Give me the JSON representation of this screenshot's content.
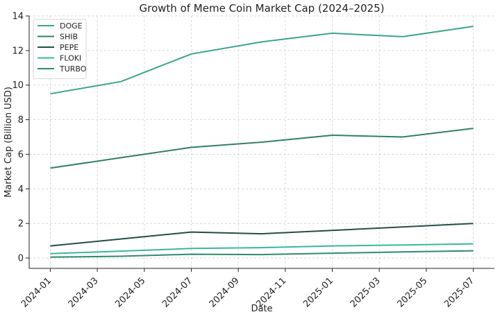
{
  "chart_data": {
    "type": "line",
    "title": "Growth of Meme Coin Market Cap (2024–2025)",
    "xlabel": "Date",
    "ylabel": "Market Cap (Billion USD)",
    "x": [
      "2024-01",
      "2024-04",
      "2024-07",
      "2024-10",
      "2025-01",
      "2025-04",
      "2025-07"
    ],
    "x_ticks": [
      "2024-01",
      "2024-03",
      "2024-05",
      "2024-07",
      "2024-09",
      "2024-11",
      "2025-01",
      "2025-03",
      "2025-05",
      "2025-07"
    ],
    "y_ticks": [
      0,
      2,
      4,
      6,
      8,
      10,
      12,
      14
    ],
    "ylim": [
      -0.6,
      14
    ],
    "grid": true,
    "legend_position": "top-left",
    "series": [
      {
        "name": "DOGE",
        "color": "#3aa58c",
        "values": [
          9.5,
          10.2,
          11.8,
          12.5,
          13.0,
          12.8,
          13.4
        ]
      },
      {
        "name": "SHIB",
        "color": "#2f7f6a",
        "values": [
          5.2,
          5.8,
          6.4,
          6.7,
          7.1,
          7.0,
          7.5
        ]
      },
      {
        "name": "PEPE",
        "color": "#1f4f47",
        "values": [
          0.7,
          1.1,
          1.5,
          1.4,
          1.6,
          1.8,
          2.0
        ]
      },
      {
        "name": "FLOKI",
        "color": "#36b89c",
        "values": [
          0.25,
          0.4,
          0.55,
          0.6,
          0.7,
          0.75,
          0.82
        ]
      },
      {
        "name": "TURBO",
        "color": "#2e8a70",
        "values": [
          0.05,
          0.1,
          0.22,
          0.2,
          0.28,
          0.35,
          0.42
        ]
      }
    ]
  }
}
